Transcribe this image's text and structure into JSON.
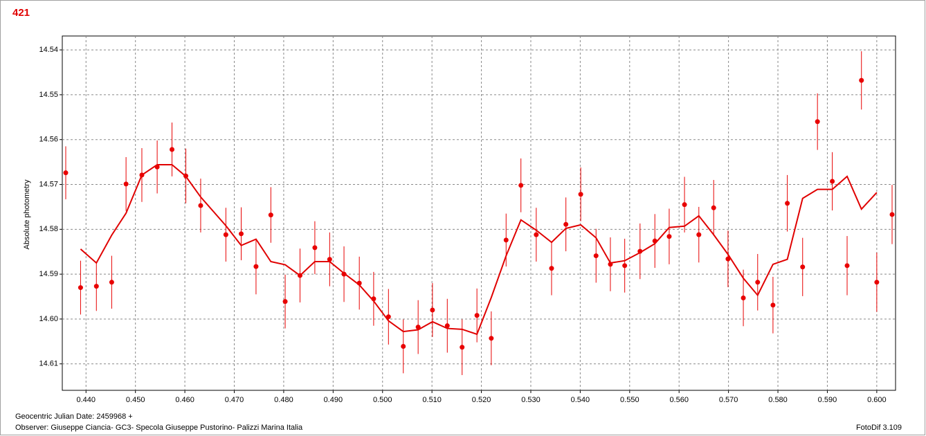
{
  "chart_data": {
    "type": "scatter",
    "title": "421",
    "ylabel": "Absolute photometry",
    "xlabel": "Geocentric Julian Date: 2459968 +",
    "observer": "Observer: Giuseppe Ciancia- GC3- Specola Giuseppe Pustorino- Palizzi Marina Italia",
    "software": "FotoDif 3.109",
    "xlim": [
      0.4352,
      0.6038
    ],
    "ylim": [
      14.6159,
      14.5369
    ],
    "xticks": [
      {
        "value": 0.44,
        "label": "0.440"
      },
      {
        "value": 0.45,
        "label": "0.450"
      },
      {
        "value": 0.46,
        "label": "0.460"
      },
      {
        "value": 0.47,
        "label": "0.470"
      },
      {
        "value": 0.48,
        "label": "0.480"
      },
      {
        "value": 0.49,
        "label": "0.490"
      },
      {
        "value": 0.5,
        "label": "0.500"
      },
      {
        "value": 0.51,
        "label": "0.510"
      },
      {
        "value": 0.52,
        "label": "0.520"
      },
      {
        "value": 0.53,
        "label": "0.530"
      },
      {
        "value": 0.54,
        "label": "0.540"
      },
      {
        "value": 0.55,
        "label": "0.550"
      },
      {
        "value": 0.56,
        "label": "0.560"
      },
      {
        "value": 0.57,
        "label": "0.570"
      },
      {
        "value": 0.58,
        "label": "0.580"
      },
      {
        "value": 0.59,
        "label": "0.590"
      },
      {
        "value": 0.6,
        "label": "0.600"
      }
    ],
    "yticks": [
      14.54,
      14.55,
      14.56,
      14.57,
      14.58,
      14.59,
      {
        "value": 14.6,
        "label": "14.60"
      },
      14.61
    ],
    "grid": true,
    "series": [
      {
        "kind": "points",
        "color": "#e80000",
        "x": [
          0.4359,
          0.4389,
          0.4421,
          0.4452,
          0.4481,
          0.4513,
          0.4544,
          0.4574,
          0.4602,
          0.4632,
          0.4683,
          0.4714,
          0.4744,
          0.4774,
          0.4803,
          0.4833,
          0.4863,
          0.4893,
          0.4922,
          0.4953,
          0.4982,
          0.5012,
          0.5042,
          0.5072,
          0.5101,
          0.5131,
          0.5161,
          0.5191,
          0.522,
          0.525,
          0.528,
          0.5311,
          0.5342,
          0.5371,
          0.5401,
          0.5432,
          0.5461,
          0.549,
          0.5521,
          0.5551,
          0.558,
          0.5611,
          0.564,
          0.567,
          0.5699,
          0.573,
          0.5759,
          0.579,
          0.5819,
          0.585,
          0.588,
          0.591,
          0.594,
          0.5969,
          0.6,
          0.6031
        ],
        "values": [
          14.5674,
          14.593,
          14.5927,
          14.5918,
          14.5699,
          14.5679,
          14.5661,
          14.5622,
          14.5681,
          14.5747,
          14.5812,
          14.581,
          14.5883,
          14.5768,
          14.5961,
          14.5903,
          14.5841,
          14.5867,
          14.59,
          14.592,
          14.5955,
          14.5995,
          14.6061,
          14.6018,
          14.598,
          14.6015,
          14.6063,
          14.5992,
          14.6043,
          14.5824,
          14.5702,
          14.5812,
          14.5887,
          14.5789,
          14.5722,
          14.5859,
          14.5878,
          14.5881,
          14.5849,
          14.5826,
          14.5816,
          14.5745,
          14.5812,
          14.5752,
          14.5866,
          14.5953,
          14.5918,
          14.5969,
          14.5742,
          14.5884,
          14.556,
          14.5693,
          14.5881,
          14.5468,
          14.5918,
          14.5767
        ],
        "errors": [
          0.0059,
          0.006,
          0.0055,
          0.0059,
          0.006,
          0.006,
          0.0059,
          0.006,
          0.0061,
          0.006,
          0.006,
          0.0059,
          0.0062,
          0.0062,
          0.006,
          0.006,
          0.0059,
          0.006,
          0.0062,
          0.0059,
          0.006,
          0.0062,
          0.006,
          0.006,
          0.006,
          0.006,
          0.0062,
          0.006,
          0.006,
          0.0059,
          0.006,
          0.006,
          0.006,
          0.006,
          0.006,
          0.006,
          0.006,
          0.006,
          0.0062,
          0.006,
          0.0062,
          0.0062,
          0.0062,
          0.0062,
          0.0063,
          0.0063,
          0.0063,
          0.0063,
          0.0063,
          0.0065,
          0.0063,
          0.0065,
          0.0066,
          0.0065,
          0.0066,
          0.0066
        ]
      },
      {
        "kind": "line",
        "color": "#e00000",
        "x": [
          0.4389,
          0.4421,
          0.4452,
          0.4481,
          0.4513,
          0.4544,
          0.4574,
          0.4602,
          0.4632,
          0.4683,
          0.4714,
          0.4744,
          0.4774,
          0.4803,
          0.4833,
          0.4863,
          0.4893,
          0.4922,
          0.4953,
          0.4982,
          0.5012,
          0.5042,
          0.5072,
          0.5101,
          0.5131,
          0.5161,
          0.5191,
          0.522,
          0.525,
          0.528,
          0.5311,
          0.5342,
          0.5371,
          0.5401,
          0.5432,
          0.5461,
          0.549,
          0.5521,
          0.5551,
          0.558,
          0.5611,
          0.564,
          0.567,
          0.5699,
          0.573,
          0.5759,
          0.579,
          0.5819,
          0.585,
          0.588,
          0.591,
          0.594,
          0.5969,
          0.6
        ],
        "values": [
          14.5844,
          14.5875,
          14.5813,
          14.5764,
          14.5679,
          14.5656,
          14.5656,
          14.5682,
          14.5728,
          14.5792,
          14.5836,
          14.5822,
          14.5872,
          14.5879,
          14.5903,
          14.5872,
          14.5872,
          14.5898,
          14.5924,
          14.596,
          14.6004,
          14.6028,
          14.6024,
          14.6006,
          14.6021,
          14.6023,
          14.6034,
          14.5952,
          14.5859,
          14.5779,
          14.5802,
          14.5829,
          14.5798,
          14.579,
          14.5819,
          14.5875,
          14.587,
          14.5852,
          14.5832,
          14.5796,
          14.5793,
          14.577,
          14.5812,
          14.5856,
          14.5909,
          14.5947,
          14.5878,
          14.5867,
          14.5731,
          14.5711,
          14.5711,
          14.5682,
          14.5755,
          14.5718
        ]
      }
    ]
  }
}
